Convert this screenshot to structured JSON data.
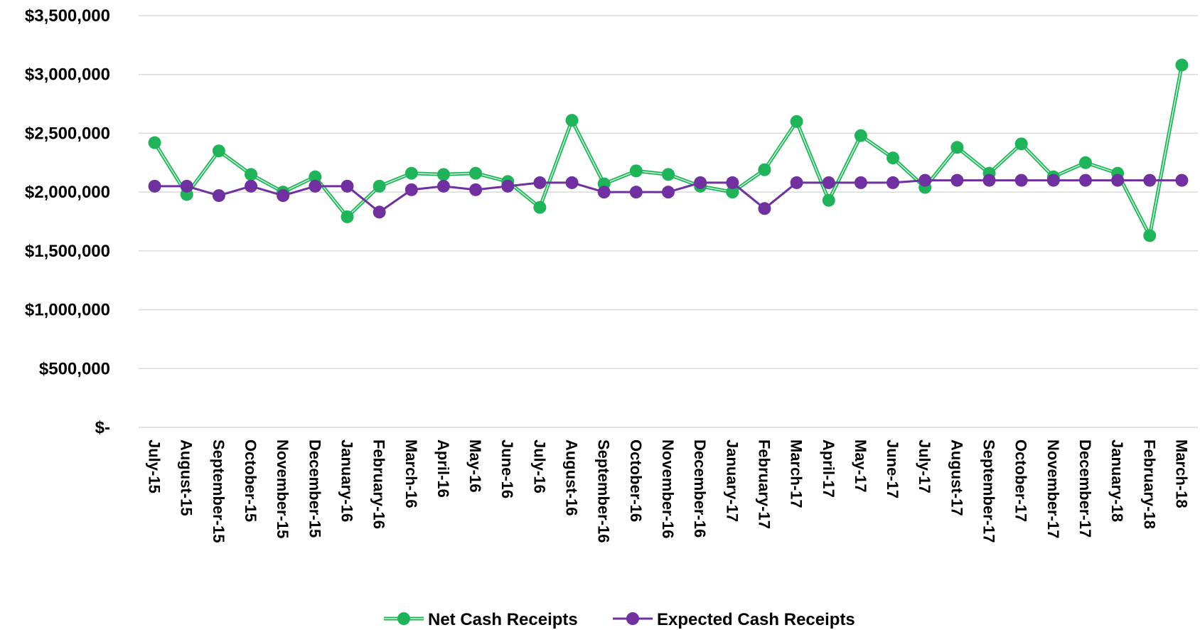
{
  "chart_data": {
    "type": "line",
    "categories": [
      "July-15",
      "August-15",
      "September-15",
      "October-15",
      "November-15",
      "December-15",
      "January-16",
      "February-16",
      "March-16",
      "April-16",
      "May-16",
      "June-16",
      "July-16",
      "August-16",
      "September-16",
      "October-16",
      "November-16",
      "December-16",
      "January-17",
      "February-17",
      "March-17",
      "April-17",
      "May-17",
      "June-17",
      "July-17",
      "August-17",
      "September-17",
      "October-17",
      "November-17",
      "December-17",
      "January-18",
      "February-18",
      "March-18"
    ],
    "series": [
      {
        "name": "Net Cash Receipts",
        "color": "#1fb35a",
        "values": [
          2420000,
          1980000,
          2350000,
          2150000,
          2000000,
          2130000,
          1790000,
          2050000,
          2160000,
          2150000,
          2160000,
          2090000,
          1870000,
          2610000,
          2070000,
          2180000,
          2150000,
          2050000,
          2000000,
          2190000,
          2600000,
          1930000,
          2480000,
          2290000,
          2040000,
          2380000,
          2160000,
          2410000,
          2130000,
          2250000,
          2160000,
          1630000,
          3080000
        ]
      },
      {
        "name": "Expected Cash Receipts",
        "color": "#7030a0",
        "values": [
          2050000,
          2050000,
          1970000,
          2050000,
          1970000,
          2050000,
          2050000,
          1830000,
          2020000,
          2050000,
          2020000,
          2050000,
          2080000,
          2080000,
          2000000,
          2000000,
          2000000,
          2080000,
          2080000,
          1860000,
          2080000,
          2080000,
          2080000,
          2080000,
          2100000,
          2100000,
          2100000,
          2100000,
          2100000,
          2100000,
          2100000,
          2100000,
          2100000
        ]
      }
    ],
    "ylim": [
      0,
      3500000
    ],
    "yticks": [
      {
        "value": 0,
        "label": "$-"
      },
      {
        "value": 500000,
        "label": "$500,000"
      },
      {
        "value": 1000000,
        "label": "$1,000,000"
      },
      {
        "value": 1500000,
        "label": "$1,500,000"
      },
      {
        "value": 2000000,
        "label": "$2,000,000"
      },
      {
        "value": 2500000,
        "label": "$2,500,000"
      },
      {
        "value": 3000000,
        "label": "$3,000,000"
      },
      {
        "value": 3500000,
        "label": "$3,500,000"
      }
    ],
    "grid": true,
    "legend": "bottom"
  }
}
